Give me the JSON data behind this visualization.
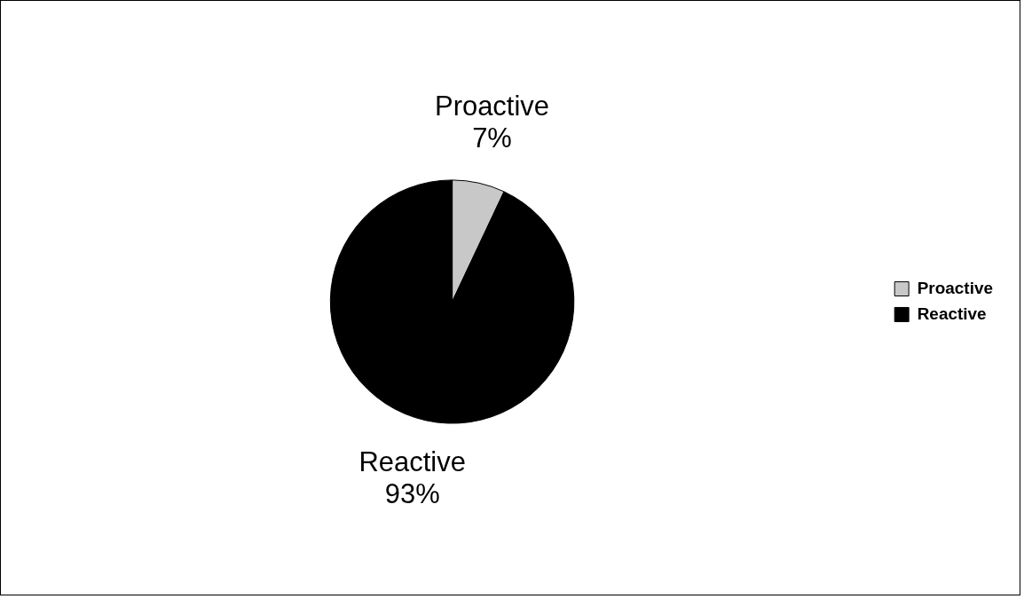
{
  "chart_data": {
    "type": "pie",
    "categories": [
      "Proactive",
      "Reactive"
    ],
    "values": [
      7,
      93
    ],
    "colors": [
      "#c8c8c8",
      "#000000"
    ],
    "value_labels": [
      "7%",
      "93%"
    ],
    "legend": "right"
  }
}
